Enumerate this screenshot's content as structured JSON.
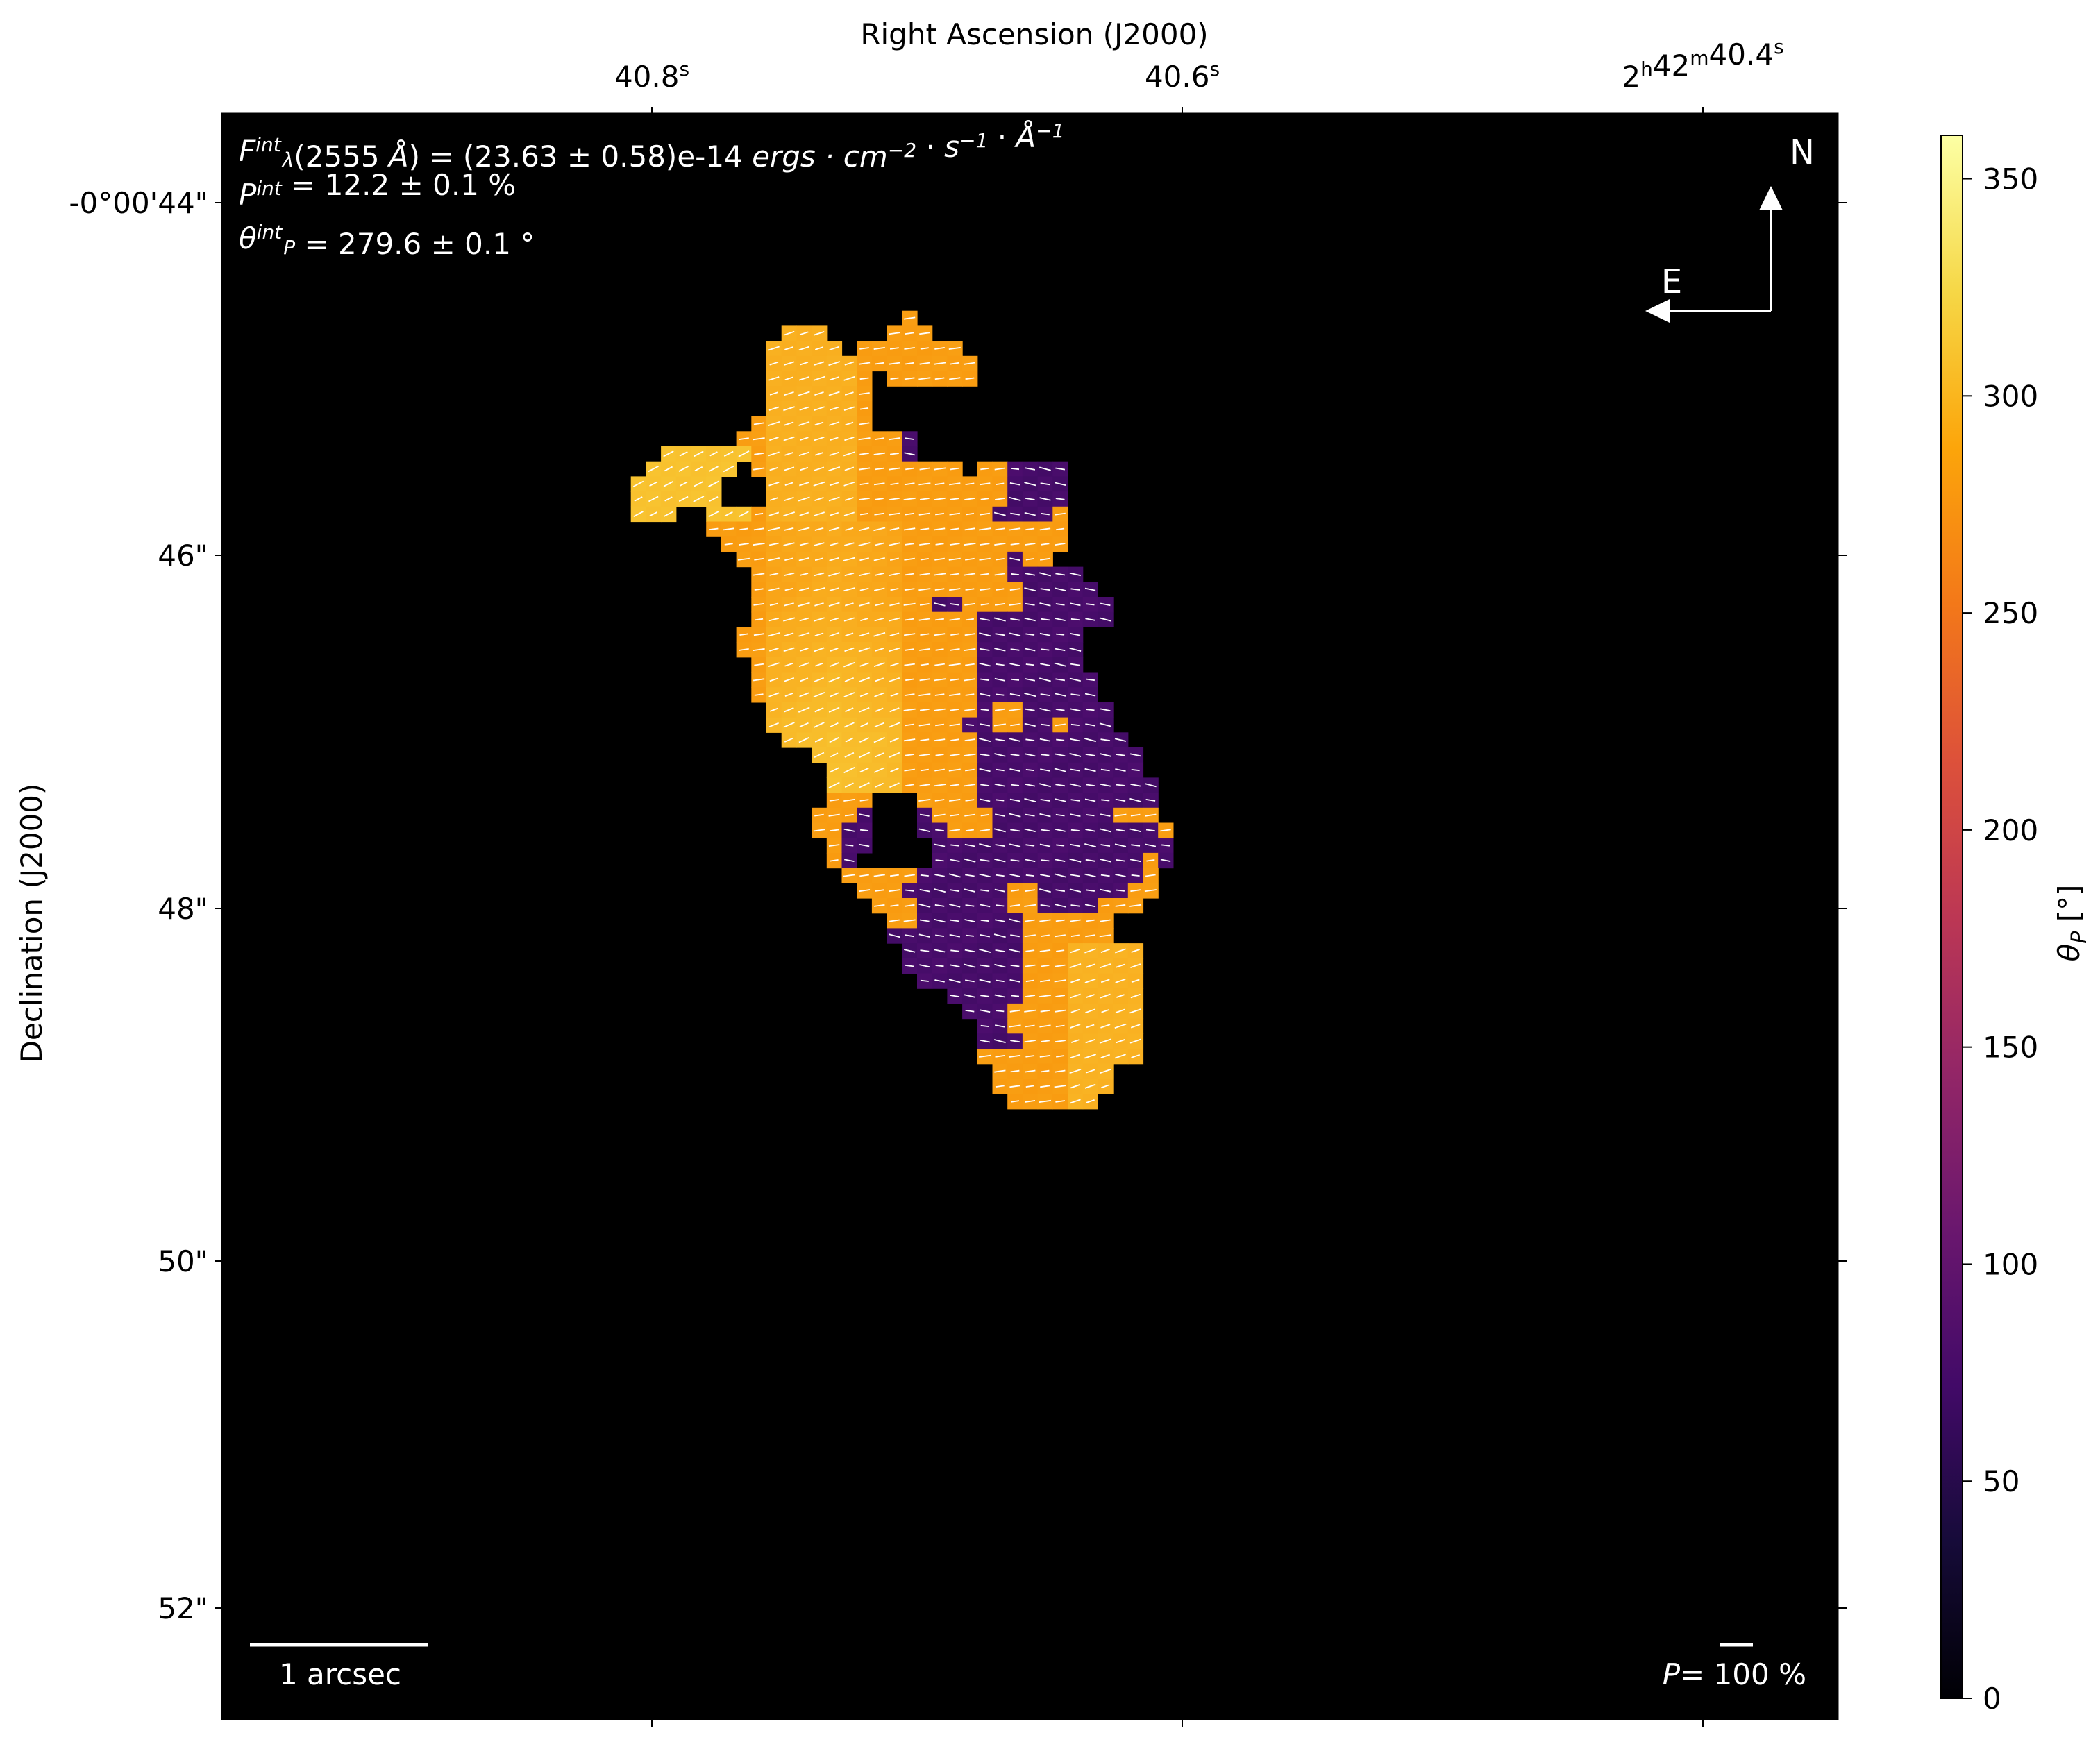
{
  "chart_data": {
    "type": "heatmap",
    "title": "",
    "xlabel": "Right Ascension (J2000)",
    "ylabel": "Declination (J2000)",
    "x_ticks": [
      [
        [
          "40.8",
          ""
        ],
        [
          "",
          "s"
        ]
      ],
      [
        [
          "40.6",
          ""
        ],
        [
          "",
          "s"
        ]
      ],
      [
        [
          "2",
          ""
        ],
        [
          "",
          "h"
        ],
        [
          "42",
          ""
        ],
        [
          "",
          "m"
        ],
        [
          "40.4",
          ""
        ],
        [
          "",
          "s"
        ]
      ]
    ],
    "y_ticks": [
      "-0°00'44\"",
      "46\"",
      "48\"",
      "50\"",
      "52\""
    ],
    "colorbar": {
      "label": "θ",
      "label_sub": "P",
      "label_unit": " [°]",
      "range": [
        0,
        360
      ],
      "ticks": [
        "0",
        "50",
        "100",
        "150",
        "200",
        "250",
        "300",
        "350"
      ],
      "tick_values": [
        0,
        50,
        100,
        150,
        200,
        250,
        300,
        350
      ],
      "colormap": "inferno"
    },
    "annotations": [
      [
        {
          "t": "F",
          "s": "i"
        },
        {
          "t": "int",
          "s": "sup",
          "sub": "λ"
        },
        {
          "t": "(2555 ",
          "s": "n"
        },
        {
          "t": "Å",
          "s": "i"
        },
        {
          "t": ") = (23.63 ± 0.58)e-14 ",
          "s": "n"
        },
        {
          "t": "ergs · cm",
          "s": "i"
        },
        {
          "t": "−2",
          "s": "sup"
        },
        {
          "t": " · ",
          "s": "n"
        },
        {
          "t": "s",
          "s": "i"
        },
        {
          "t": "−1",
          "s": "sup"
        },
        {
          "t": " · ",
          "s": "n"
        },
        {
          "t": "Å",
          "s": "i"
        },
        {
          "t": "−1",
          "s": "sup"
        }
      ],
      [
        {
          "t": "P",
          "s": "i"
        },
        {
          "t": "int",
          "s": "sup"
        },
        {
          "t": " = 12.2 ± 0.1 %",
          "s": "n"
        }
      ],
      [
        {
          "t": "θ",
          "s": "i"
        },
        {
          "t": "int",
          "s": "sup",
          "sub": "P"
        },
        {
          "t": " = 279.6 ± 0.1 °",
          "s": "n"
        }
      ]
    ],
    "compass": {
      "north": "N",
      "east": "E"
    },
    "scale_bar": "1 arcsec",
    "vector_scale": {
      "label_p": "P",
      "label_rest": "= 100 %"
    },
    "region_values_deg": {
      "yellow": 320,
      "orange": 280,
      "purple": 90
    },
    "colors": {
      "yellow": "#fbbd26",
      "orange": "#f99b10",
      "purple": "#4c0d6d",
      "background": "#000000"
    }
  }
}
